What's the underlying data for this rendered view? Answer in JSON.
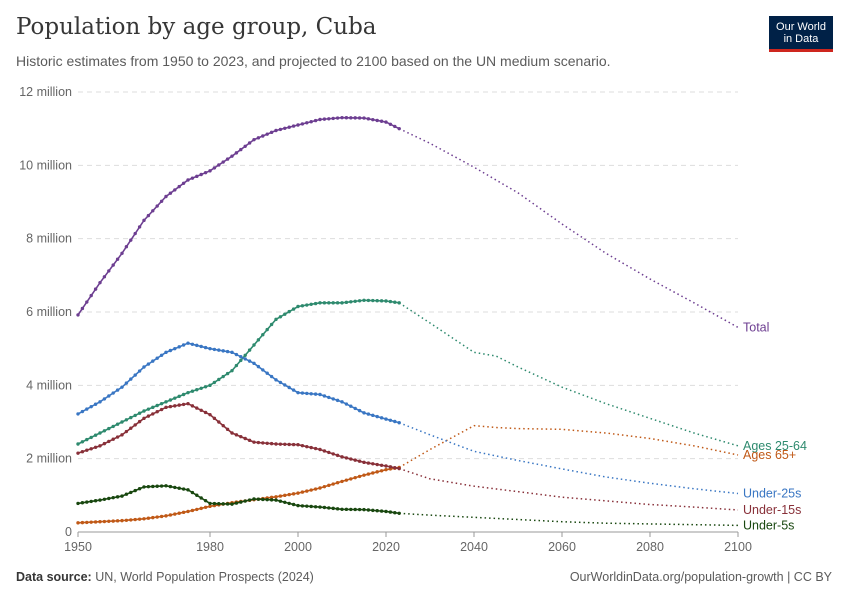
{
  "header": {
    "title": "Population by age group, Cuba",
    "subtitle": "Historic estimates from 1950 to 2023, and projected to 2100 based on the UN medium scenario.",
    "logo_line1": "Our World",
    "logo_line2": "in Data"
  },
  "footer": {
    "source_label": "Data source:",
    "source_text": "UN, World Population Prospects (2024)",
    "url": "OurWorldinData.org/population-growth | CC BY"
  },
  "chart_data": {
    "type": "line",
    "title": "Population by age group, Cuba",
    "x_ticks": [
      1950,
      1980,
      2000,
      2020,
      2040,
      2060,
      2080,
      2100
    ],
    "x_tick_labels": [
      "1950",
      "1980",
      "2000",
      "2020",
      "2040",
      "2060",
      "2080",
      "2100"
    ],
    "y_ticks": [
      0,
      2000000,
      4000000,
      6000000,
      8000000,
      10000000,
      12000000
    ],
    "y_tick_labels": [
      "0",
      "2 million",
      "4 million",
      "6 million",
      "8 million",
      "10 million",
      "12 million"
    ],
    "xlim": [
      1950,
      2100
    ],
    "ylim": [
      0,
      12000000
    ],
    "grid": "horizontal dashed",
    "historic_end_year": 2023,
    "note": "solid lines with markers = estimates; dotted lines = projections",
    "series": [
      {
        "name": "Total",
        "color": "#6d3e91",
        "x": [
          1950,
          1955,
          1960,
          1965,
          1970,
          1975,
          1980,
          1985,
          1990,
          1995,
          2000,
          2005,
          2010,
          2015,
          2020,
          2023,
          2030,
          2040,
          2050,
          2060,
          2070,
          2080,
          2090,
          2100
        ],
        "y": [
          5920000,
          6800000,
          7600000,
          8500000,
          9150000,
          9600000,
          9850000,
          10250000,
          10700000,
          10950000,
          11100000,
          11250000,
          11300000,
          11290000,
          11180000,
          11000000,
          10600000,
          9950000,
          9250000,
          8400000,
          7600000,
          6900000,
          6250000,
          5580000
        ]
      },
      {
        "name": "Ages 25-64",
        "color": "#2e8a6e",
        "x": [
          1950,
          1955,
          1960,
          1965,
          1970,
          1975,
          1980,
          1985,
          1990,
          1995,
          2000,
          2005,
          2010,
          2015,
          2020,
          2023,
          2030,
          2040,
          2045,
          2050,
          2060,
          2070,
          2080,
          2090,
          2100
        ],
        "y": [
          2400000,
          2700000,
          3000000,
          3300000,
          3550000,
          3800000,
          4000000,
          4400000,
          5100000,
          5800000,
          6150000,
          6250000,
          6250000,
          6320000,
          6300000,
          6250000,
          5700000,
          4900000,
          4800000,
          4500000,
          3950000,
          3500000,
          3100000,
          2700000,
          2350000
        ]
      },
      {
        "name": "Ages 65+",
        "color": "#c05917",
        "x": [
          1950,
          1955,
          1960,
          1965,
          1970,
          1975,
          1980,
          1985,
          1990,
          1995,
          2000,
          2005,
          2010,
          2015,
          2020,
          2023,
          2030,
          2040,
          2045,
          2050,
          2060,
          2070,
          2080,
          2090,
          2100
        ],
        "y": [
          250000,
          280000,
          310000,
          360000,
          440000,
          560000,
          700000,
          800000,
          880000,
          960000,
          1060000,
          1200000,
          1380000,
          1550000,
          1700000,
          1760000,
          2250000,
          2900000,
          2850000,
          2820000,
          2800000,
          2700000,
          2550000,
          2350000,
          2100000
        ]
      },
      {
        "name": "Under-25s",
        "color": "#3976c3",
        "x": [
          1950,
          1955,
          1960,
          1965,
          1970,
          1975,
          1980,
          1985,
          1990,
          1995,
          2000,
          2005,
          2010,
          2015,
          2020,
          2023,
          2030,
          2040,
          2050,
          2060,
          2070,
          2080,
          2090,
          2100
        ],
        "y": [
          3220000,
          3550000,
          3950000,
          4500000,
          4900000,
          5150000,
          5000000,
          4900000,
          4600000,
          4150000,
          3800000,
          3750000,
          3550000,
          3250000,
          3080000,
          2980000,
          2650000,
          2200000,
          1950000,
          1720000,
          1500000,
          1330000,
          1180000,
          1050000
        ]
      },
      {
        "name": "Under-15s",
        "color": "#883039",
        "x": [
          1950,
          1955,
          1960,
          1965,
          1970,
          1975,
          1980,
          1985,
          1990,
          1995,
          2000,
          2005,
          2010,
          2015,
          2020,
          2023,
          2030,
          2040,
          2050,
          2060,
          2070,
          2080,
          2090,
          2100
        ],
        "y": [
          2150000,
          2350000,
          2650000,
          3100000,
          3400000,
          3500000,
          3200000,
          2700000,
          2450000,
          2400000,
          2380000,
          2250000,
          2050000,
          1900000,
          1800000,
          1730000,
          1450000,
          1250000,
          1100000,
          950000,
          850000,
          750000,
          680000,
          600000
        ]
      },
      {
        "name": "Under-5s",
        "color": "#18470f",
        "x": [
          1950,
          1955,
          1960,
          1965,
          1970,
          1975,
          1980,
          1985,
          1990,
          1995,
          2000,
          2005,
          2010,
          2015,
          2020,
          2023,
          2030,
          2040,
          2050,
          2060,
          2070,
          2080,
          2090,
          2100
        ],
        "y": [
          780000,
          870000,
          980000,
          1230000,
          1260000,
          1150000,
          780000,
          760000,
          900000,
          870000,
          720000,
          680000,
          620000,
          610000,
          560000,
          510000,
          460000,
          400000,
          340000,
          280000,
          240000,
          220000,
          200000,
          180000
        ]
      }
    ],
    "end_labels": {
      "Total": "Total",
      "Ages 25-64": "Ages 25-64",
      "Ages 65+": "Ages 65+",
      "Under-25s": "Under-25s",
      "Under-15s": "Under-15s",
      "Under-5s": "Under-5s"
    }
  }
}
